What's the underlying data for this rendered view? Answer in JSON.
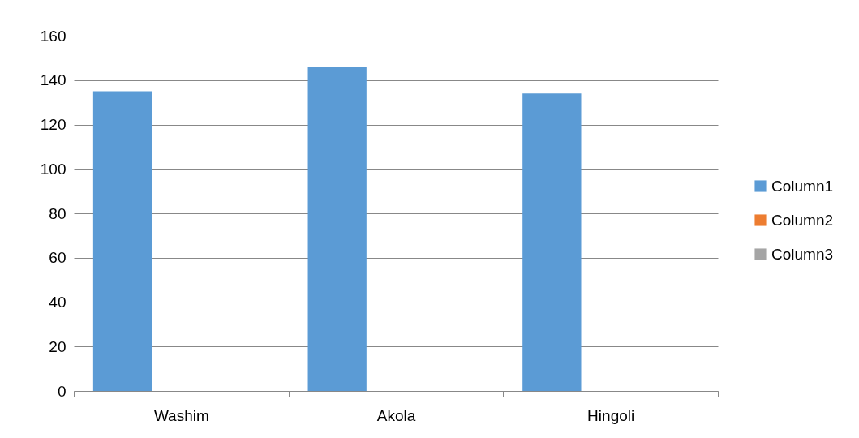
{
  "chart_data": {
    "type": "bar",
    "categories": [
      "Washim",
      "Akola",
      "Hingoli"
    ],
    "series": [
      {
        "name": "Column1",
        "color": "#5b9bd5",
        "values": [
          135,
          146,
          134
        ]
      },
      {
        "name": "Column2",
        "color": "#ed7d31",
        "values": [
          null,
          null,
          null
        ]
      },
      {
        "name": "Column3",
        "color": "#a5a5a5",
        "values": [
          null,
          null,
          null
        ]
      }
    ],
    "ylim": [
      0,
      160
    ],
    "yticks": [
      0,
      20,
      40,
      60,
      80,
      100,
      120,
      140,
      160
    ],
    "grid": "y",
    "legend": "right"
  }
}
